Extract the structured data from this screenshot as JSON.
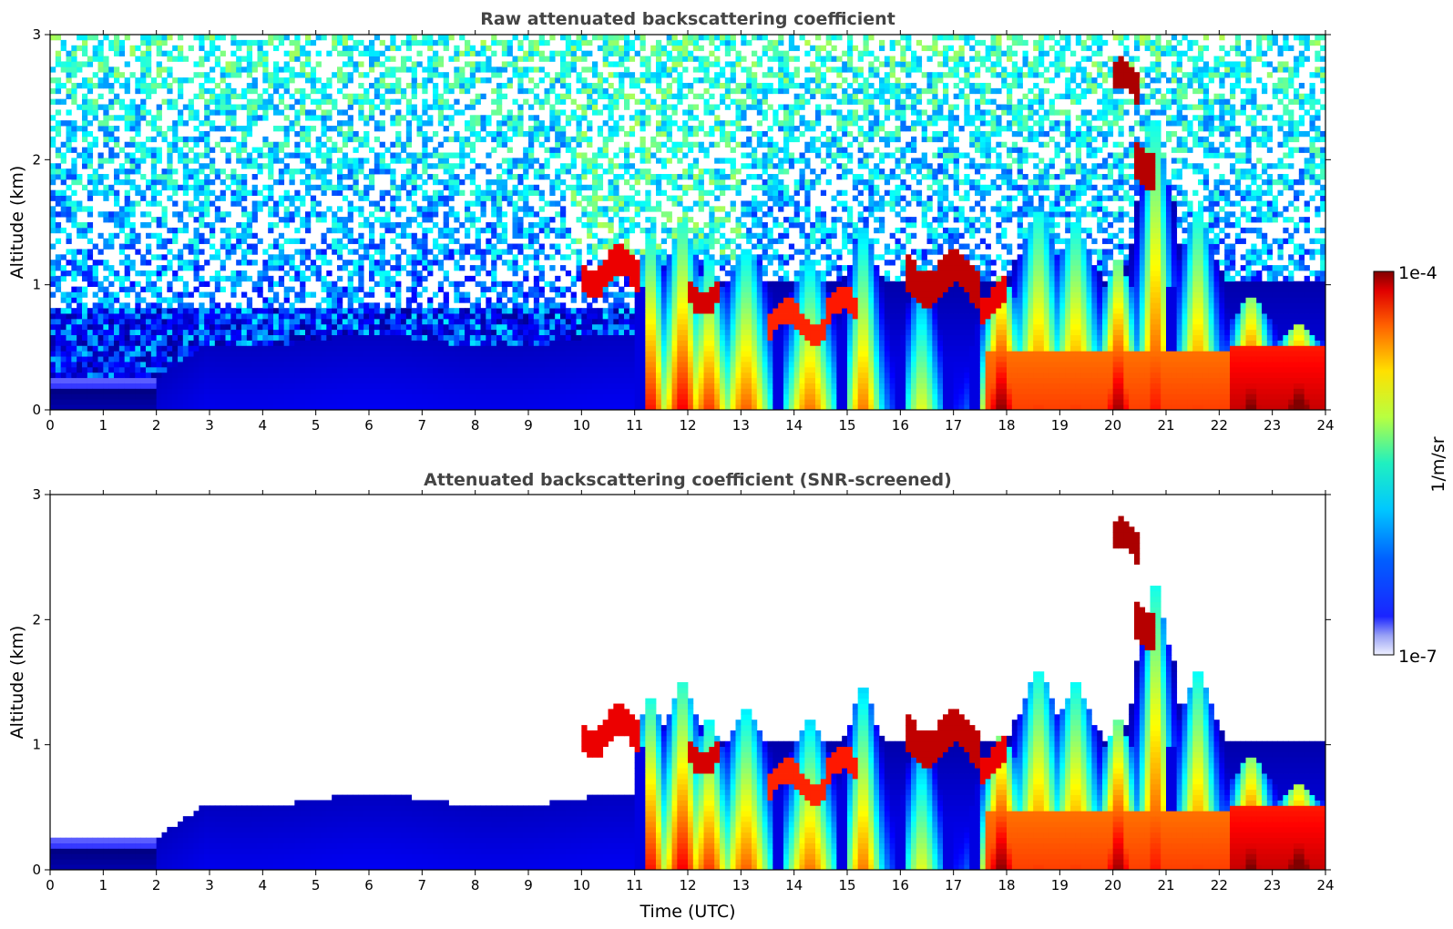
{
  "chart_data": [
    {
      "type": "heatmap",
      "title": "Raw attenuated backscattering coefficient",
      "xlabel": "",
      "ylabel": "Altitude (km)",
      "xlim": [
        0,
        24
      ],
      "ylim": [
        0,
        3
      ],
      "xticks": [
        "0",
        "1",
        "2",
        "3",
        "4",
        "5",
        "6",
        "7",
        "8",
        "9",
        "10",
        "11",
        "12",
        "13",
        "14",
        "15",
        "16",
        "17",
        "18",
        "19",
        "20",
        "21",
        "22",
        "23",
        "24"
      ],
      "yticks": [
        "0",
        "1",
        "2",
        "3"
      ],
      "screened": false
    },
    {
      "type": "heatmap",
      "title": "Attenuated backscattering coefficient (SNR-screened)",
      "xlabel": "Time (UTC)",
      "ylabel": "Altitude (km)",
      "xlim": [
        0,
        24
      ],
      "ylim": [
        0,
        3
      ],
      "xticks": [
        "0",
        "1",
        "2",
        "3",
        "4",
        "5",
        "6",
        "7",
        "8",
        "9",
        "10",
        "11",
        "12",
        "13",
        "14",
        "15",
        "16",
        "17",
        "18",
        "19",
        "20",
        "21",
        "22",
        "23",
        "24"
      ],
      "yticks": [
        "0",
        "1",
        "2",
        "3"
      ],
      "screened": true
    }
  ],
  "colorbar": {
    "label": "1/m/sr",
    "max_label": "1e-4",
    "min_label": "1e-7",
    "scale": "log",
    "range": [
      1e-07,
      0.0001
    ],
    "colormap": "jet"
  }
}
